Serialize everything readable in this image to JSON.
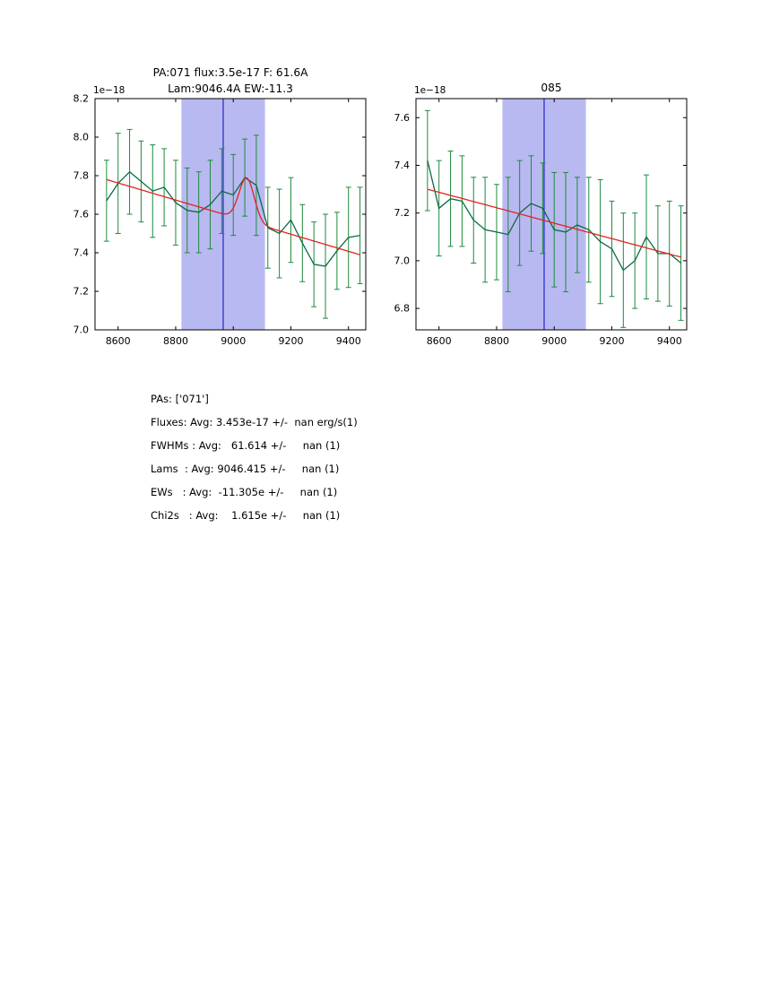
{
  "figure": {
    "background": "#ffffff"
  },
  "colors": {
    "band": "#b9b9f2",
    "vline": "#2323cc",
    "errbar": "#1e8a3c",
    "data_line": "#0b6b44",
    "fit_line": "#e32222",
    "axis": "#000000"
  },
  "chart_data": [
    {
      "type": "line",
      "title_line1": "PA:071 flux:3.5e-17 F: 61.6A",
      "title_line2": "Lam:9046.4A EW:-11.3",
      "offset_label": "1e−18",
      "xlabel": "",
      "ylabel": "",
      "xlim": [
        8520,
        9460
      ],
      "ylim": [
        7.0,
        8.2
      ],
      "xticks": [
        "8600",
        "8800",
        "9000",
        "9200",
        "9400"
      ],
      "yticks": [
        "7.0",
        "7.2",
        "7.4",
        "7.6",
        "7.8",
        "8.0",
        "8.2"
      ],
      "band": [
        8820,
        9110
      ],
      "vline": 8965,
      "legend": "off",
      "grid": "off",
      "x": [
        8560,
        8600,
        8640,
        8680,
        8720,
        8760,
        8800,
        8840,
        8880,
        8920,
        8960,
        9000,
        9040,
        9080,
        9120,
        9160,
        9200,
        9240,
        9280,
        9320,
        9360,
        9400,
        9440
      ],
      "y": [
        7.67,
        7.76,
        7.82,
        7.77,
        7.72,
        7.74,
        7.66,
        7.62,
        7.61,
        7.65,
        7.72,
        7.7,
        7.79,
        7.75,
        7.53,
        7.5,
        7.57,
        7.45,
        7.34,
        7.33,
        7.41,
        7.48,
        7.49
      ],
      "yerr": [
        0.21,
        0.26,
        0.22,
        0.21,
        0.24,
        0.2,
        0.22,
        0.22,
        0.21,
        0.23,
        0.22,
        0.21,
        0.2,
        0.26,
        0.21,
        0.23,
        0.22,
        0.2,
        0.22,
        0.27,
        0.2,
        0.26,
        0.25
      ],
      "fit": {
        "x_start": 8560,
        "y_start": 7.78,
        "x_end": 9440,
        "y_end": 7.39,
        "gauss_amp": 0.225,
        "gauss_center": 9046.4,
        "gauss_sigma": 26.2
      }
    },
    {
      "type": "line",
      "title": "085",
      "offset_label": "1e−18",
      "xlabel": "",
      "ylabel": "",
      "xlim": [
        8520,
        9460
      ],
      "ylim": [
        6.71,
        7.68
      ],
      "xticks": [
        "8600",
        "8800",
        "9000",
        "9200",
        "9400"
      ],
      "yticks": [
        "6.8",
        "7.0",
        "7.2",
        "7.4",
        "7.6"
      ],
      "band": [
        8820,
        9110
      ],
      "vline": 8965,
      "legend": "off",
      "grid": "off",
      "x": [
        8560,
        8600,
        8640,
        8680,
        8720,
        8760,
        8800,
        8840,
        8880,
        8920,
        8960,
        9000,
        9040,
        9080,
        9120,
        9160,
        9200,
        9240,
        9280,
        9320,
        9360,
        9400,
        9440
      ],
      "y": [
        7.42,
        7.22,
        7.26,
        7.25,
        7.17,
        7.13,
        7.12,
        7.11,
        7.2,
        7.24,
        7.22,
        7.13,
        7.12,
        7.15,
        7.13,
        7.08,
        7.05,
        6.96,
        7.0,
        7.1,
        7.03,
        7.03,
        6.99
      ],
      "yerr": [
        0.21,
        0.2,
        0.2,
        0.19,
        0.18,
        0.22,
        0.2,
        0.24,
        0.22,
        0.2,
        0.19,
        0.24,
        0.25,
        0.2,
        0.22,
        0.26,
        0.2,
        0.24,
        0.2,
        0.26,
        0.2,
        0.22,
        0.24
      ],
      "fit": {
        "x_start": 8560,
        "y_start": 7.3,
        "x_end": 9440,
        "y_end": 7.015,
        "gauss_amp": 0,
        "gauss_center": 9046.4,
        "gauss_sigma": 26.2
      }
    }
  ],
  "stats": {
    "lines": [
      "PAs: ['071']",
      "Fluxes: Avg: 3.453e-17 +/-  nan erg/s(1)",
      "FWHMs : Avg:   61.614 +/-     nan (1)",
      "Lams  : Avg: 9046.415 +/-     nan (1)",
      "EWs   : Avg:  -11.305e +/-     nan (1)",
      "Chi2s   : Avg:    1.615e +/-     nan (1)"
    ]
  }
}
